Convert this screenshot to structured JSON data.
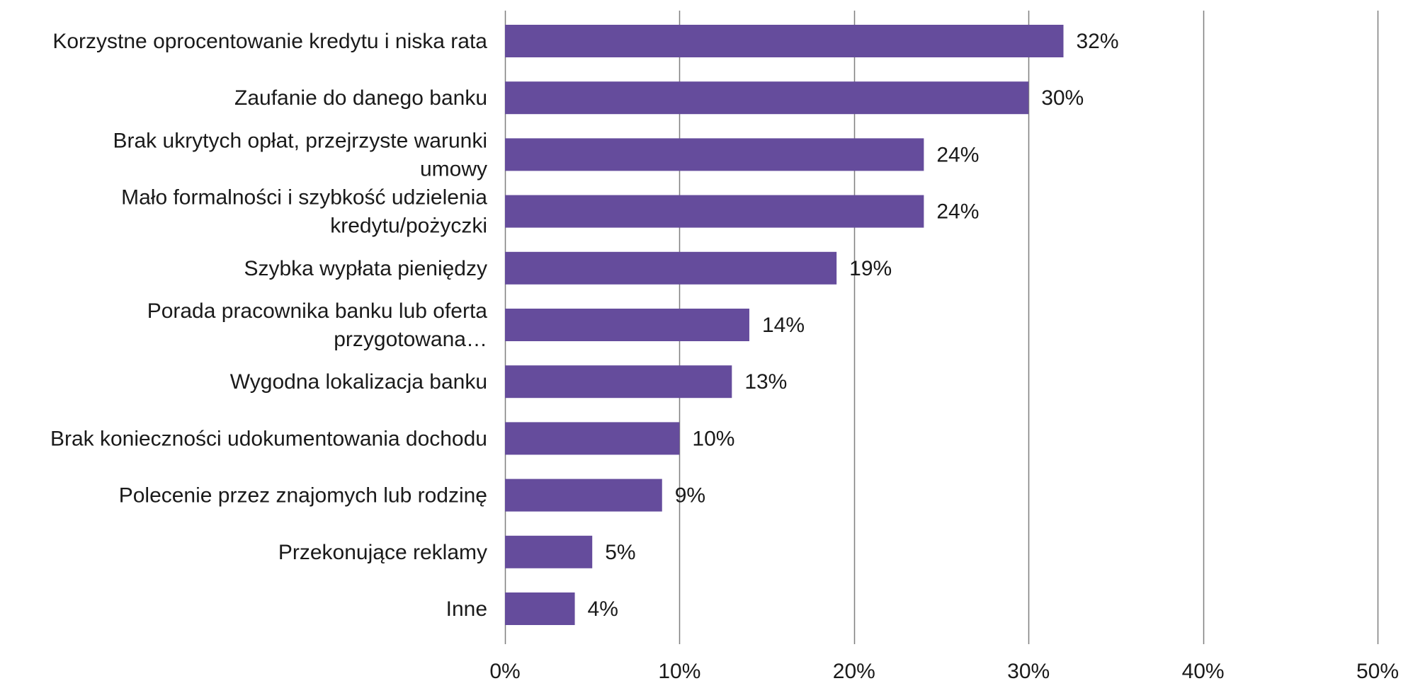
{
  "chart_data": {
    "type": "bar",
    "orientation": "horizontal",
    "categories": [
      "Korzystne oprocentowanie kredytu i niska rata",
      "Zaufanie do danego banku",
      "Brak ukrytych opłat, przejrzyste warunki umowy",
      "Mało formalności i szybkość udzielenia kredytu/pożyczki",
      "Szybka wypłata pieniędzy",
      "Porada pracownika banku lub oferta przygotowana…",
      "Wygodna lokalizacja banku",
      "Brak konieczności udokumentowania dochodu",
      "Polecenie przez znajomych lub rodzinę",
      "Przekonujące reklamy",
      "Inne"
    ],
    "category_lines": [
      [
        "Korzystne oprocentowanie kredytu i niska rata"
      ],
      [
        "Zaufanie do danego banku"
      ],
      [
        "Brak ukrytych opłat, przejrzyste warunki",
        "umowy"
      ],
      [
        "Mało formalności i szybkość udzielenia",
        "kredytu/pożyczki"
      ],
      [
        "Szybka wypłata pieniędzy"
      ],
      [
        "Porada pracownika banku lub oferta",
        "przygotowana…"
      ],
      [
        "Wygodna lokalizacja banku"
      ],
      [
        "Brak konieczności udokumentowania dochodu"
      ],
      [
        "Polecenie przez znajomych lub rodzinę"
      ],
      [
        "Przekonujące reklamy"
      ],
      [
        "Inne"
      ]
    ],
    "values": [
      32,
      30,
      24,
      24,
      19,
      14,
      13,
      10,
      9,
      5,
      4
    ],
    "value_labels": [
      "32%",
      "30%",
      "24%",
      "24%",
      "19%",
      "14%",
      "13%",
      "10%",
      "9%",
      "5%",
      "4%"
    ],
    "xlim": [
      0,
      50
    ],
    "x_ticks": [
      0,
      10,
      20,
      30,
      40,
      50
    ],
    "x_tick_labels": [
      "0%",
      "10%",
      "20%",
      "30%",
      "40%",
      "50%"
    ],
    "grid": "vertical",
    "legend": "none",
    "bar_color": "#654c9c",
    "grid_color": "#7f7f7f",
    "title": "",
    "xlabel": "",
    "ylabel": ""
  }
}
